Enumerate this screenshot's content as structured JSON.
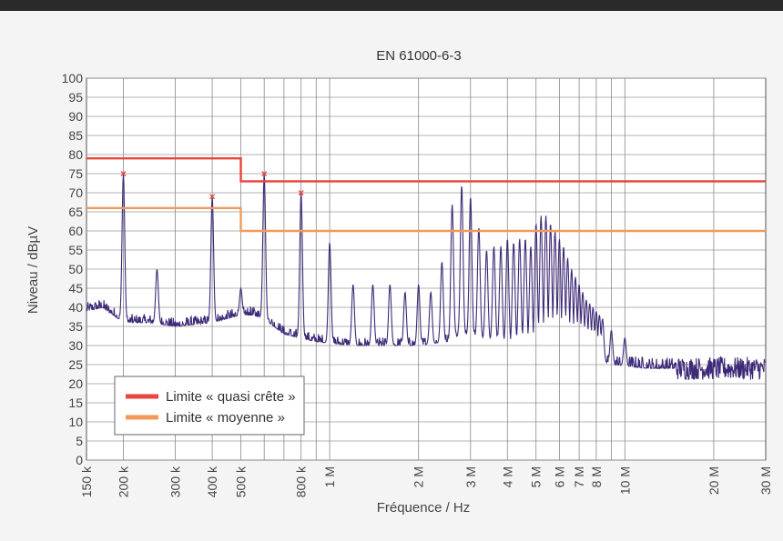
{
  "chart_data": {
    "type": "line",
    "title": "EN 61000-6-3",
    "xlabel": "Fréquence / Hz",
    "ylabel": "Niveau / dBµV",
    "xscale": "log",
    "xlim": [
      150000,
      30000000
    ],
    "ylim": [
      0,
      100
    ],
    "x_ticks": [
      {
        "value": 150000,
        "label": "150 k"
      },
      {
        "value": 200000,
        "label": "200 k"
      },
      {
        "value": 300000,
        "label": "300 k"
      },
      {
        "value": 400000,
        "label": "400 k"
      },
      {
        "value": 500000,
        "label": "500 k"
      },
      {
        "value": 800000,
        "label": "800 k"
      },
      {
        "value": 1000000,
        "label": "1 M"
      },
      {
        "value": 2000000,
        "label": "2 M"
      },
      {
        "value": 3000000,
        "label": "3 M"
      },
      {
        "value": 4000000,
        "label": "4 M"
      },
      {
        "value": 5000000,
        "label": "5 M"
      },
      {
        "value": 6000000,
        "label": "6 M"
      },
      {
        "value": 7000000,
        "label": "7 M"
      },
      {
        "value": 8000000,
        "label": "8 M"
      },
      {
        "value": 10000000,
        "label": "10 M"
      },
      {
        "value": 20000000,
        "label": "20 M"
      },
      {
        "value": 30000000,
        "label": "30 M"
      }
    ],
    "y_ticks": [
      0,
      5,
      10,
      15,
      20,
      25,
      30,
      35,
      40,
      45,
      50,
      55,
      60,
      65,
      70,
      75,
      80,
      85,
      90,
      95,
      100
    ],
    "grid": true,
    "legend_position": "bottom-left",
    "series": [
      {
        "name": "Limite « quasi crête »",
        "color": "#e8453c",
        "x": [
          150000,
          500000,
          500000,
          30000000
        ],
        "y": [
          79,
          79,
          73,
          73
        ]
      },
      {
        "name": "Limite « moyenne »",
        "color": "#f39a5a",
        "x": [
          150000,
          500000,
          500000,
          30000000
        ],
        "y": [
          66,
          66,
          60,
          60
        ]
      }
    ],
    "measurement": {
      "color": "#3d2a78",
      "baseline": [
        [
          150000,
          39
        ],
        [
          170000,
          40
        ],
        [
          185000,
          38
        ],
        [
          200000,
          36
        ],
        [
          250000,
          36
        ],
        [
          300000,
          35
        ],
        [
          400000,
          36
        ],
        [
          500000,
          38
        ],
        [
          550000,
          38
        ],
        [
          600000,
          37
        ],
        [
          700000,
          33
        ],
        [
          900000,
          31
        ],
        [
          1200000,
          30
        ],
        [
          1500000,
          30
        ],
        [
          2000000,
          30
        ],
        [
          2500000,
          31
        ],
        [
          2800000,
          33
        ],
        [
          3200000,
          32
        ],
        [
          4000000,
          30
        ],
        [
          5000000,
          29
        ],
        [
          7000000,
          28
        ],
        [
          9000000,
          25
        ],
        [
          12000000,
          24
        ],
        [
          20000000,
          24
        ],
        [
          30000000,
          24
        ]
      ],
      "peaks": [
        [
          200000,
          75
        ],
        [
          260000,
          50
        ],
        [
          400000,
          69
        ],
        [
          500000,
          45
        ],
        [
          600000,
          75
        ],
        [
          800000,
          70
        ],
        [
          1000000,
          57
        ],
        [
          1200000,
          46
        ],
        [
          1400000,
          46
        ],
        [
          1600000,
          46
        ],
        [
          1800000,
          44
        ],
        [
          2000000,
          46
        ],
        [
          2200000,
          44
        ],
        [
          2400000,
          52
        ],
        [
          2600000,
          67
        ],
        [
          2800000,
          72
        ],
        [
          3000000,
          69
        ],
        [
          3200000,
          61
        ],
        [
          3400000,
          55
        ],
        [
          3600000,
          56
        ],
        [
          3800000,
          56
        ],
        [
          4000000,
          58
        ],
        [
          4200000,
          57
        ],
        [
          4400000,
          58
        ],
        [
          4600000,
          58
        ],
        [
          4800000,
          56
        ],
        [
          5000000,
          62
        ],
        [
          5200000,
          64
        ],
        [
          5400000,
          64
        ],
        [
          5600000,
          62
        ],
        [
          5800000,
          60
        ],
        [
          6000000,
          58
        ],
        [
          6200000,
          56
        ],
        [
          6400000,
          53
        ],
        [
          6600000,
          50
        ],
        [
          6800000,
          48
        ],
        [
          7000000,
          46
        ],
        [
          7200000,
          44
        ],
        [
          7400000,
          42
        ],
        [
          7600000,
          41
        ],
        [
          7800000,
          40
        ],
        [
          8000000,
          39
        ],
        [
          8200000,
          38
        ],
        [
          8400000,
          37
        ],
        [
          9000000,
          34
        ],
        [
          10000000,
          32
        ]
      ]
    }
  }
}
